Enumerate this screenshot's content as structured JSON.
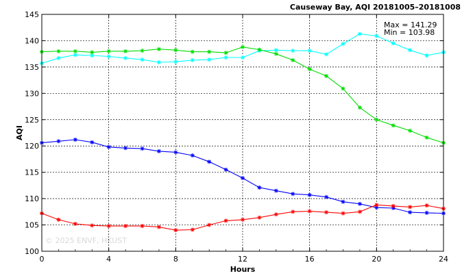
{
  "chart_data": {
    "type": "line",
    "title": "Causeway Bay, AQI 20181005–20181008",
    "xlabel": "Hours",
    "ylabel": "AQI",
    "xlim": [
      0,
      24
    ],
    "ylim": [
      100,
      145
    ],
    "xticks": [
      "0",
      "4",
      "8",
      "12",
      "16",
      "20",
      "24"
    ],
    "yticks": [
      "100",
      "105",
      "110",
      "115",
      "120",
      "125",
      "130",
      "135",
      "140",
      "145"
    ],
    "grid": true,
    "annotations": [
      "Max = 141.29",
      "Min = 103.98"
    ],
    "watermark": "© 2025 ENVF, HKUST",
    "x": [
      0,
      1,
      2,
      3,
      4,
      5,
      6,
      7,
      8,
      9,
      10,
      11,
      12,
      13,
      14,
      15,
      16,
      17,
      18,
      19,
      20,
      21,
      22,
      23,
      24
    ],
    "series": [
      {
        "color": "#00ffff",
        "values": [
          135.7,
          136.7,
          137.3,
          137.2,
          137.0,
          136.7,
          136.4,
          135.9,
          136.0,
          136.3,
          136.4,
          136.8,
          136.8,
          138.1,
          138.2,
          138.1,
          138.1,
          137.4,
          139.4,
          141.3,
          140.9,
          139.5,
          138.2,
          137.2,
          137.8
        ]
      },
      {
        "color": "#00dd00",
        "values": [
          137.9,
          138.0,
          138.0,
          137.8,
          138.0,
          138.0,
          138.1,
          138.4,
          138.2,
          137.9,
          137.9,
          137.7,
          138.8,
          138.3,
          137.5,
          136.3,
          134.6,
          133.3,
          130.9,
          127.3,
          125.0,
          123.9,
          122.9,
          121.6,
          120.6
        ]
      },
      {
        "color": "#0000ff",
        "values": [
          120.6,
          120.9,
          121.2,
          120.7,
          119.8,
          119.6,
          119.5,
          119.0,
          118.8,
          118.2,
          117.0,
          115.5,
          113.9,
          112.1,
          111.5,
          110.9,
          110.7,
          110.3,
          109.4,
          109.0,
          108.3,
          108.2,
          107.4,
          107.3,
          107.2
        ]
      },
      {
        "color": "#ff0000",
        "values": [
          107.2,
          106.0,
          105.2,
          104.9,
          104.8,
          104.8,
          104.8,
          104.6,
          104.0,
          104.1,
          105.0,
          105.8,
          106.0,
          106.4,
          107.0,
          107.5,
          107.6,
          107.4,
          107.2,
          107.5,
          108.8,
          108.6,
          108.4,
          108.7,
          108.1
        ]
      }
    ]
  }
}
